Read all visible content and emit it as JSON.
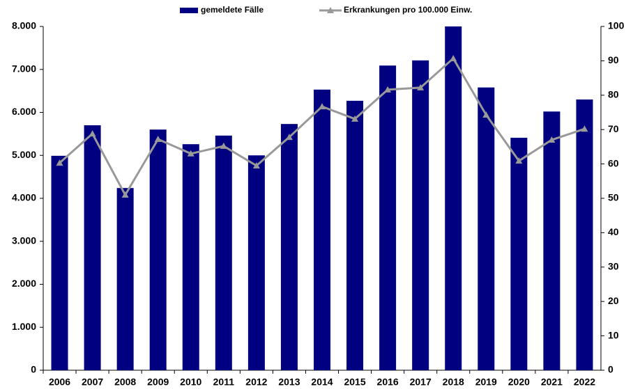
{
  "chart_data": {
    "type": "bar",
    "categories": [
      "2006",
      "2007",
      "2008",
      "2009",
      "2010",
      "2011",
      "2012",
      "2013",
      "2014",
      "2015",
      "2016",
      "2017",
      "2018",
      "2019",
      "2020",
      "2021",
      "2022"
    ],
    "series": [
      {
        "name": "gemeldete Fälle",
        "type": "bar",
        "color": "#000080",
        "axis": "y",
        "values": [
          4990,
          5700,
          4240,
          5600,
          5260,
          5460,
          5000,
          5730,
          6530,
          6270,
          7090,
          7210,
          8000,
          6580,
          5410,
          6020,
          6300
        ]
      },
      {
        "name": "Erkrankungen pro 100.000 Einw.",
        "type": "line",
        "color": "#999999",
        "axis": "y2",
        "values": [
          60.3,
          68.8,
          51.0,
          67.2,
          63.0,
          65.2,
          59.5,
          67.8,
          76.7,
          73.1,
          81.6,
          82.2,
          90.7,
          74.3,
          60.9,
          67.0,
          70.2
        ]
      }
    ],
    "ylim": [
      0,
      8000
    ],
    "yticks": [
      0,
      {
        "value": 1000,
        "label": "1.000"
      },
      {
        "value": 2000,
        "label": "2.000"
      },
      {
        "value": 3000,
        "label": "3.000"
      },
      {
        "value": 4000,
        "label": "4.000"
      },
      {
        "value": 5000,
        "label": "5.000"
      },
      {
        "value": 6000,
        "label": "6.000"
      },
      {
        "value": 7000,
        "label": "7.000"
      },
      {
        "value": 8000,
        "label": "8.000"
      }
    ],
    "y2lim": [
      0,
      100
    ],
    "y2ticks": [
      0,
      10,
      20,
      30,
      40,
      50,
      60,
      70,
      80,
      90,
      100
    ],
    "grid": false
  }
}
